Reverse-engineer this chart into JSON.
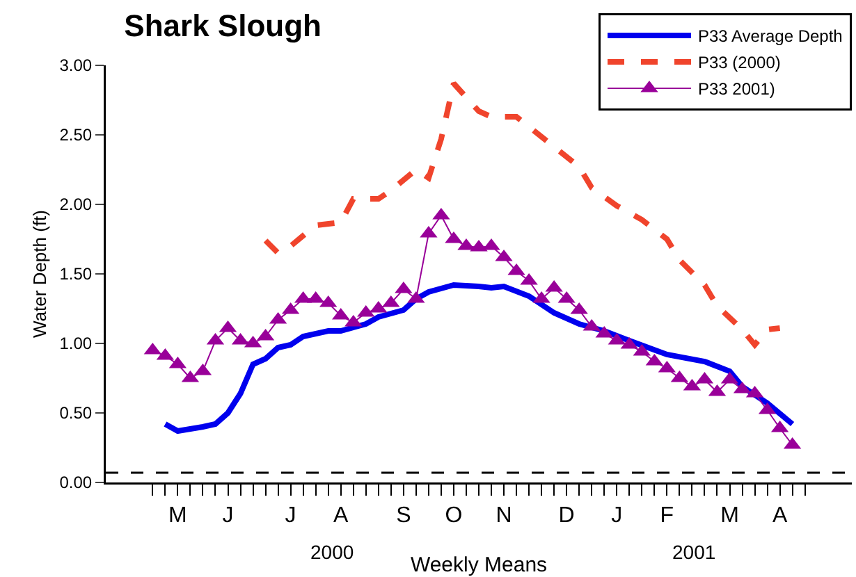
{
  "chart_data": {
    "type": "line",
    "title": "Shark Slough",
    "xlabel": "Weekly Means",
    "ylabel": "Water Depth (ft)",
    "annotations": [
      "2000",
      "2001"
    ],
    "categories": [
      null,
      null,
      "M",
      null,
      null,
      null,
      "J",
      null,
      null,
      null,
      null,
      "J",
      null,
      null,
      null,
      "A",
      null,
      null,
      null,
      null,
      "S",
      null,
      null,
      null,
      "O",
      null,
      null,
      null,
      "N",
      null,
      null,
      null,
      null,
      "D",
      null,
      null,
      null,
      "J",
      null,
      null,
      null,
      "F",
      null,
      null,
      null,
      null,
      "M",
      null,
      null,
      null,
      "A",
      null,
      null
    ],
    "ylim": [
      0,
      3
    ],
    "yticks": [
      {
        "value": 0,
        "label": "0.00"
      },
      {
        "value": 0.5,
        "label": "0.50"
      },
      {
        "value": 1,
        "label": "1.00"
      },
      {
        "value": 1.5,
        "label": "1.50"
      },
      {
        "value": 2,
        "label": "2.00"
      },
      {
        "value": 2.5,
        "label": "2.50"
      },
      {
        "value": 3,
        "label": "3.00"
      }
    ],
    "grid": false,
    "legend": "top right",
    "ref_lines": [
      {
        "axis": "y",
        "value": 0.07,
        "color": "#000000",
        "line_style": "dashed"
      }
    ],
    "series": [
      {
        "name": "P33 Average Depth",
        "color": "#0000ee",
        "line_style": "solid",
        "marker": "none",
        "values": [
          null,
          0.42,
          0.37,
          null,
          0.4,
          0.42,
          0.5,
          0.64,
          0.85,
          0.89,
          0.97,
          0.99,
          1.05,
          null,
          1.09,
          1.09,
          null,
          1.14,
          1.19,
          null,
          1.24,
          1.32,
          1.37,
          null,
          1.42,
          null,
          1.41,
          1.4,
          1.41,
          null,
          1.34,
          null,
          1.22,
          null,
          1.14,
          null,
          1.09,
          null,
          1.02,
          null,
          null,
          0.92,
          null,
          null,
          0.87,
          null,
          0.8,
          0.69,
          null,
          0.57,
          null,
          0.42,
          null
        ]
      },
      {
        "name": "P33 (2000)",
        "color": "#f0442c",
        "line_style": "dashed",
        "marker": "none",
        "values": [
          null,
          null,
          null,
          null,
          null,
          null,
          null,
          null,
          null,
          1.74,
          1.65,
          1.7,
          null,
          1.85,
          null,
          1.87,
          2.04,
          null,
          2.04,
          2.1,
          null,
          2.25,
          2.19,
          2.47,
          2.87,
          null,
          2.67,
          2.63,
          null,
          2.63,
          null,
          null,
          null,
          null,
          2.27,
          2.12,
          null,
          1.99,
          null,
          1.89,
          null,
          1.75,
          1.6,
          null,
          1.42,
          1.27,
          null,
          1.1,
          0.99,
          1.1,
          1.11,
          null,
          null
        ]
      },
      {
        "name": "P33 2001)",
        "color": "#990099",
        "line_style": "solid",
        "marker": "triangle",
        "values": [
          0.95,
          0.91,
          0.85,
          0.75,
          0.8,
          1.02,
          1.11,
          1.02,
          1.0,
          1.05,
          1.17,
          1.24,
          1.32,
          1.32,
          1.29,
          1.2,
          1.15,
          1.22,
          1.25,
          1.29,
          1.39,
          1.32,
          1.79,
          1.92,
          1.75,
          1.7,
          1.69,
          1.7,
          1.62,
          1.52,
          1.45,
          1.32,
          1.4,
          1.32,
          1.24,
          1.12,
          1.07,
          1.02,
          0.99,
          0.94,
          0.87,
          0.82,
          0.75,
          0.69,
          0.74,
          0.65,
          0.74,
          0.67,
          0.64,
          0.52,
          0.39,
          0.27,
          null
        ]
      }
    ]
  }
}
